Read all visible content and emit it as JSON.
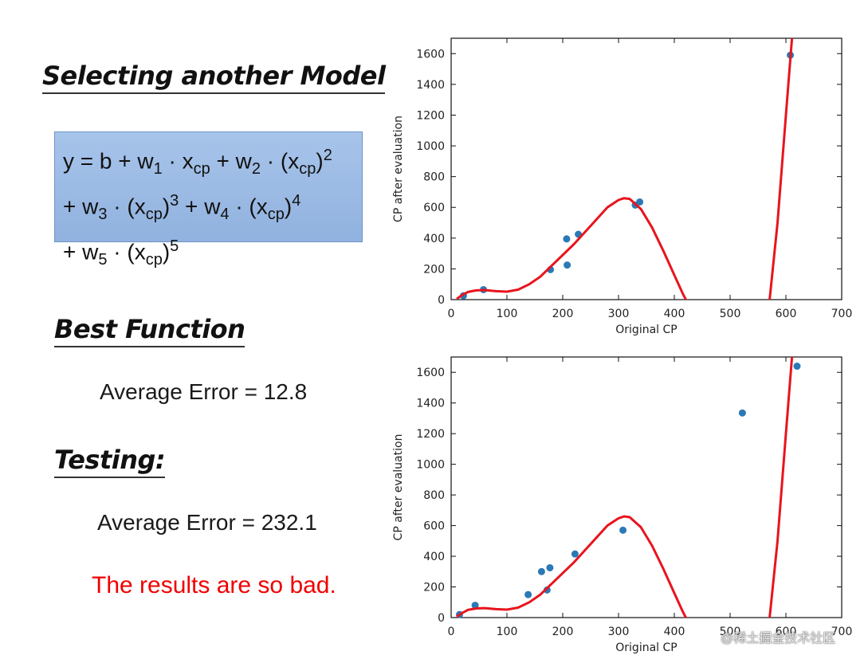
{
  "left_panel": {
    "title": "Selecting another Model",
    "formula": {
      "line1": {
        "a": "y = b + w",
        "a_sub": "1",
        "b": " · x",
        "b_sub": "cp",
        "c": " + w",
        "c_sub": "2",
        "d": " · (x",
        "d_sub": "cp",
        "e": ")",
        "e_sup": "2"
      },
      "line2": {
        "a": "+ w",
        "a_sub": "3",
        "b": " · (x",
        "b_sub": "cp",
        "c": ")",
        "c_sup": "3",
        "d": " + w",
        "d_sub": "4",
        "e": " · (x",
        "e_sub": "cp",
        "f": ")",
        "f_sup": "4"
      },
      "line3": {
        "a": "+ w",
        "a_sub": "5",
        "b": " · (x",
        "b_sub": "cp",
        "c": ")",
        "c_sup": "5"
      }
    },
    "best_heading": "Best Function",
    "best_error": "Average Error = 12.8",
    "testing_heading": "Testing:",
    "testing_error": "Average Error = 232.1",
    "remark": "The results are so bad."
  },
  "watermark": "@稀土掘金技术社区",
  "colors": {
    "curve": "#e8141c",
    "points": "#2b79b6",
    "remark": "#f00000",
    "formula_box": "#9fbde6"
  },
  "chart_data": [
    {
      "type": "scatter",
      "title": "",
      "xlabel": "Original CP",
      "ylabel": "CP after evaluation",
      "xlim": [
        0,
        700
      ],
      "ylim": [
        0,
        1700
      ],
      "xticks": [
        0,
        100,
        200,
        300,
        400,
        500,
        600,
        700
      ],
      "yticks": [
        0,
        200,
        400,
        600,
        800,
        1000,
        1200,
        1400,
        1600
      ],
      "grid": false,
      "series": [
        {
          "kind": "points",
          "x": [
            22,
            58,
            178,
            207,
            208,
            228,
            330,
            338,
            608
          ],
          "y": [
            25,
            65,
            195,
            395,
            225,
            425,
            615,
            635,
            1590
          ]
        },
        {
          "kind": "fitted_curve",
          "x": [
            10,
            20,
            30,
            45,
            60,
            80,
            100,
            120,
            140,
            160,
            180,
            200,
            220,
            240,
            260,
            280,
            300,
            310,
            320,
            340,
            360,
            380,
            400,
            415,
            425,
            570,
            585,
            600,
            612
          ],
          "y": [
            5,
            30,
            50,
            60,
            62,
            55,
            52,
            65,
            100,
            150,
            220,
            290,
            360,
            440,
            520,
            600,
            648,
            660,
            655,
            590,
            470,
            320,
            160,
            40,
            -30,
            -30,
            500,
            1200,
            1750
          ]
        }
      ]
    },
    {
      "type": "scatter",
      "title": "",
      "xlabel": "Original CP",
      "ylabel": "CP after evaluation",
      "xlim": [
        0,
        700
      ],
      "ylim": [
        0,
        1700
      ],
      "xticks": [
        0,
        100,
        200,
        300,
        400,
        500,
        600,
        700
      ],
      "yticks": [
        0,
        200,
        400,
        600,
        800,
        1000,
        1200,
        1400,
        1600
      ],
      "grid": false,
      "series": [
        {
          "kind": "points",
          "x": [
            15,
            43,
            138,
            162,
            172,
            177,
            222,
            308,
            522,
            620
          ],
          "y": [
            20,
            80,
            150,
            300,
            180,
            325,
            415,
            570,
            1335,
            1640
          ]
        },
        {
          "kind": "fitted_curve",
          "x": [
            10,
            20,
            30,
            45,
            60,
            80,
            100,
            120,
            140,
            160,
            180,
            200,
            220,
            240,
            260,
            280,
            300,
            310,
            320,
            340,
            360,
            380,
            400,
            415,
            425,
            570,
            585,
            600,
            612
          ],
          "y": [
            5,
            30,
            50,
            60,
            62,
            55,
            52,
            65,
            100,
            150,
            220,
            290,
            360,
            440,
            520,
            600,
            648,
            660,
            655,
            590,
            470,
            320,
            160,
            40,
            -30,
            -30,
            500,
            1200,
            1750
          ]
        }
      ]
    }
  ]
}
